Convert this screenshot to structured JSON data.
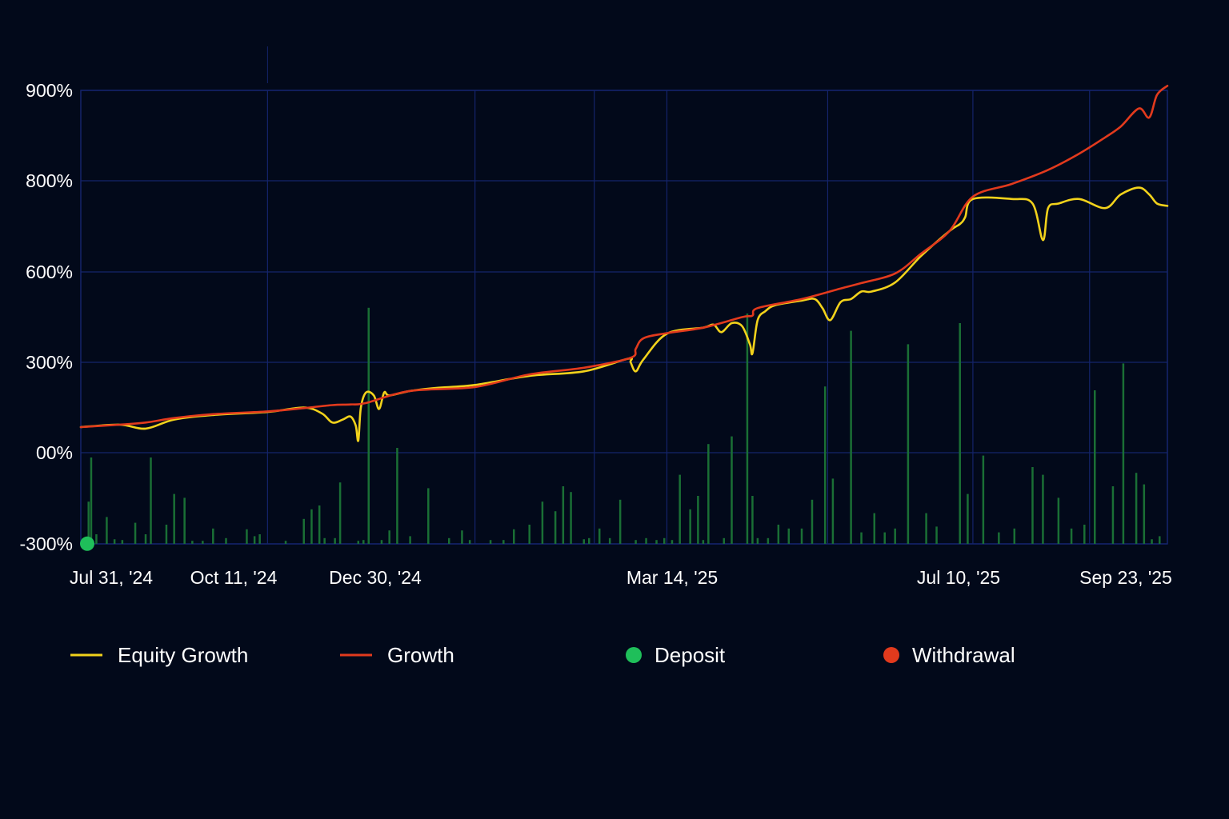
{
  "chart_data": {
    "type": "line",
    "title": "",
    "xlabel": "",
    "ylabel": "",
    "grid": true,
    "legend_position": "bottom",
    "colors": {
      "background": "#02091a",
      "grid": "#14246b",
      "equity_growth": "#f2d21b",
      "growth": "#e23a1d",
      "deposit": "#1fbf5a",
      "withdrawal": "#e23a1d",
      "volume_bars": "#1a6f35"
    },
    "y_axis": {
      "tick_labels": [
        "900%",
        "800%",
        "600%",
        "300%",
        "00%",
        "-300%"
      ]
    },
    "x_axis": {
      "tick_labels": [
        "Jul 31, '24",
        "Oct 11, '24",
        "Dec 30, '24",
        "Mar 14, '25",
        "Jul 10, '25",
        "Sep 23, '25"
      ],
      "gridline_dates": [
        "2024-10-11",
        "2024-12-30",
        "2025-02-14",
        "2025-03-14",
        "2025-05-15",
        "2025-07-10",
        "2025-08-24",
        "2025-09-23"
      ],
      "range": [
        "2024-07-31",
        "2025-09-23"
      ]
    },
    "series": [
      {
        "name": "Equity Growth",
        "x": [
          "2024-07-31",
          "2024-08-15",
          "2024-08-25",
          "2024-09-05",
          "2024-09-20",
          "2024-10-11",
          "2024-10-25",
          "2024-11-01",
          "2024-11-05",
          "2024-11-09",
          "2024-11-12",
          "2024-11-14",
          "2024-11-15",
          "2024-11-16",
          "2024-11-18",
          "2024-11-21",
          "2024-11-23",
          "2024-11-25",
          "2024-11-27",
          "2024-12-05",
          "2024-12-15",
          "2024-12-30",
          "2025-01-20",
          "2025-02-10",
          "2025-02-27",
          "2025-02-28",
          "2025-03-02",
          "2025-03-05",
          "2025-03-14",
          "2025-03-28",
          "2025-04-01",
          "2025-04-04",
          "2025-04-08",
          "2025-04-12",
          "2025-04-15",
          "2025-04-16",
          "2025-04-18",
          "2025-04-21",
          "2025-04-25",
          "2025-05-05",
          "2025-05-10",
          "2025-05-13",
          "2025-05-16",
          "2025-05-20",
          "2025-05-24",
          "2025-05-28",
          "2025-06-01",
          "2025-06-10",
          "2025-06-20",
          "2025-07-01",
          "2025-07-05",
          "2025-07-07",
          "2025-07-10",
          "2025-07-25",
          "2025-08-02",
          "2025-08-06",
          "2025-08-08",
          "2025-08-12",
          "2025-08-20",
          "2025-08-30",
          "2025-09-05",
          "2025-09-12",
          "2025-09-16",
          "2025-09-19",
          "2025-09-23"
        ],
        "y": [
          85,
          93,
          80,
          110,
          125,
          135,
          150,
          130,
          100,
          110,
          120,
          90,
          40,
          150,
          200,
          190,
          145,
          200,
          190,
          205,
          215,
          225,
          255,
          270,
          312,
          300,
          270,
          310,
          395,
          415,
          425,
          400,
          430,
          420,
          360,
          330,
          440,
          470,
          490,
          505,
          510,
          480,
          440,
          500,
          510,
          535,
          535,
          565,
          635,
          690,
          705,
          720,
          760,
          760,
          750,
          670,
          740,
          750,
          760,
          740,
          770,
          785,
          770,
          750,
          745
        ]
      },
      {
        "name": "Growth",
        "x": [
          "2024-07-31",
          "2024-08-15",
          "2024-08-25",
          "2024-09-05",
          "2024-09-20",
          "2024-10-11",
          "2024-10-25",
          "2024-11-05",
          "2024-11-12",
          "2024-11-18",
          "2024-12-05",
          "2024-12-30",
          "2025-01-20",
          "2025-02-10",
          "2025-02-28",
          "2025-03-02",
          "2025-03-05",
          "2025-03-14",
          "2025-03-28",
          "2025-04-12",
          "2025-04-16",
          "2025-04-18",
          "2025-05-05",
          "2025-05-20",
          "2025-05-28",
          "2025-06-10",
          "2025-06-20",
          "2025-07-01",
          "2025-07-10",
          "2025-07-25",
          "2025-08-08",
          "2025-08-20",
          "2025-08-30",
          "2025-09-05",
          "2025-09-12",
          "2025-09-16",
          "2025-09-19",
          "2025-09-23"
        ],
        "y": [
          85,
          93,
          100,
          115,
          128,
          137,
          148,
          158,
          160,
          165,
          205,
          218,
          260,
          282,
          315,
          345,
          380,
          397,
          415,
          450,
          455,
          480,
          510,
          545,
          563,
          595,
          640,
          690,
          765,
          793,
          812,
          830,
          848,
          860,
          880,
          870,
          895,
          905
        ]
      }
    ],
    "volume_bars": [
      {
        "x": "2024-08-03",
        "v": 110
      },
      {
        "x": "2024-08-04",
        "v": 225
      },
      {
        "x": "2024-08-06",
        "v": 25
      },
      {
        "x": "2024-08-10",
        "v": 70
      },
      {
        "x": "2024-08-13",
        "v": 12
      },
      {
        "x": "2024-08-16",
        "v": 10
      },
      {
        "x": "2024-08-21",
        "v": 55
      },
      {
        "x": "2024-08-25",
        "v": 25
      },
      {
        "x": "2024-08-27",
        "v": 225
      },
      {
        "x": "2024-09-02",
        "v": 50
      },
      {
        "x": "2024-09-05",
        "v": 130
      },
      {
        "x": "2024-09-09",
        "v": 120
      },
      {
        "x": "2024-09-12",
        "v": 8
      },
      {
        "x": "2024-09-16",
        "v": 8
      },
      {
        "x": "2024-09-20",
        "v": 40
      },
      {
        "x": "2024-09-25",
        "v": 15
      },
      {
        "x": "2024-10-03",
        "v": 38
      },
      {
        "x": "2024-10-06",
        "v": 20
      },
      {
        "x": "2024-10-08",
        "v": 25
      },
      {
        "x": "2024-10-18",
        "v": 8
      },
      {
        "x": "2024-10-25",
        "v": 65
      },
      {
        "x": "2024-10-28",
        "v": 90
      },
      {
        "x": "2024-10-31",
        "v": 100
      },
      {
        "x": "2024-11-02",
        "v": 15
      },
      {
        "x": "2024-11-06",
        "v": 15
      },
      {
        "x": "2024-11-08",
        "v": 160
      },
      {
        "x": "2024-11-15",
        "v": 8
      },
      {
        "x": "2024-11-17",
        "v": 10
      },
      {
        "x": "2024-11-19",
        "v": 615
      },
      {
        "x": "2024-11-24",
        "v": 10
      },
      {
        "x": "2024-11-27",
        "v": 35
      },
      {
        "x": "2024-11-30",
        "v": 250
      },
      {
        "x": "2024-12-05",
        "v": 20
      },
      {
        "x": "2024-12-12",
        "v": 145
      },
      {
        "x": "2024-12-20",
        "v": 15
      },
      {
        "x": "2024-12-25",
        "v": 35
      },
      {
        "x": "2024-12-28",
        "v": 10
      },
      {
        "x": "2025-01-05",
        "v": 10
      },
      {
        "x": "2025-01-10",
        "v": 10
      },
      {
        "x": "2025-01-14",
        "v": 38
      },
      {
        "x": "2025-01-20",
        "v": 50
      },
      {
        "x": "2025-01-25",
        "v": 110
      },
      {
        "x": "2025-01-30",
        "v": 85
      },
      {
        "x": "2025-02-02",
        "v": 150
      },
      {
        "x": "2025-02-05",
        "v": 135
      },
      {
        "x": "2025-02-10",
        "v": 12
      },
      {
        "x": "2025-02-12",
        "v": 15
      },
      {
        "x": "2025-02-16",
        "v": 40
      },
      {
        "x": "2025-02-20",
        "v": 15
      },
      {
        "x": "2025-02-24",
        "v": 115
      },
      {
        "x": "2025-03-02",
        "v": 10
      },
      {
        "x": "2025-03-06",
        "v": 15
      },
      {
        "x": "2025-03-10",
        "v": 10
      },
      {
        "x": "2025-03-13",
        "v": 15
      },
      {
        "x": "2025-03-16",
        "v": 10
      },
      {
        "x": "2025-03-19",
        "v": 180
      },
      {
        "x": "2025-03-23",
        "v": 90
      },
      {
        "x": "2025-03-26",
        "v": 125
      },
      {
        "x": "2025-03-28",
        "v": 10
      },
      {
        "x": "2025-03-30",
        "v": 260
      },
      {
        "x": "2025-04-05",
        "v": 15
      },
      {
        "x": "2025-04-08",
        "v": 280
      },
      {
        "x": "2025-04-14",
        "v": 600
      },
      {
        "x": "2025-04-16",
        "v": 125
      },
      {
        "x": "2025-04-18",
        "v": 15
      },
      {
        "x": "2025-04-22",
        "v": 15
      },
      {
        "x": "2025-04-26",
        "v": 50
      },
      {
        "x": "2025-04-30",
        "v": 40
      },
      {
        "x": "2025-05-05",
        "v": 40
      },
      {
        "x": "2025-05-09",
        "v": 115
      },
      {
        "x": "2025-05-14",
        "v": 410
      },
      {
        "x": "2025-05-17",
        "v": 170
      },
      {
        "x": "2025-05-24",
        "v": 555
      },
      {
        "x": "2025-05-28",
        "v": 30
      },
      {
        "x": "2025-06-02",
        "v": 80
      },
      {
        "x": "2025-06-06",
        "v": 30
      },
      {
        "x": "2025-06-10",
        "v": 40
      },
      {
        "x": "2025-06-15",
        "v": 520
      },
      {
        "x": "2025-06-22",
        "v": 80
      },
      {
        "x": "2025-06-26",
        "v": 45
      },
      {
        "x": "2025-07-05",
        "v": 575
      },
      {
        "x": "2025-07-08",
        "v": 130
      },
      {
        "x": "2025-07-14",
        "v": 230
      },
      {
        "x": "2025-07-20",
        "v": 30
      },
      {
        "x": "2025-07-26",
        "v": 40
      },
      {
        "x": "2025-08-02",
        "v": 200
      },
      {
        "x": "2025-08-06",
        "v": 180
      },
      {
        "x": "2025-08-12",
        "v": 120
      },
      {
        "x": "2025-08-17",
        "v": 40
      },
      {
        "x": "2025-08-22",
        "v": 50
      },
      {
        "x": "2025-08-26",
        "v": 400
      },
      {
        "x": "2025-09-02",
        "v": 150
      },
      {
        "x": "2025-09-06",
        "v": 470
      },
      {
        "x": "2025-09-11",
        "v": 185
      },
      {
        "x": "2025-09-14",
        "v": 155
      },
      {
        "x": "2025-09-17",
        "v": 12
      },
      {
        "x": "2025-09-20",
        "v": 20
      }
    ],
    "markers": [
      {
        "type": "deposit",
        "x": "2024-07-31",
        "y": -310
      }
    ],
    "legend": [
      {
        "label": "Equity Growth",
        "kind": "line",
        "color_key": "equity_growth"
      },
      {
        "label": "Growth",
        "kind": "line",
        "color_key": "growth"
      },
      {
        "label": "Deposit",
        "kind": "dot",
        "color_key": "deposit"
      },
      {
        "label": "Withdrawal",
        "kind": "dot",
        "color_key": "withdrawal"
      }
    ]
  }
}
